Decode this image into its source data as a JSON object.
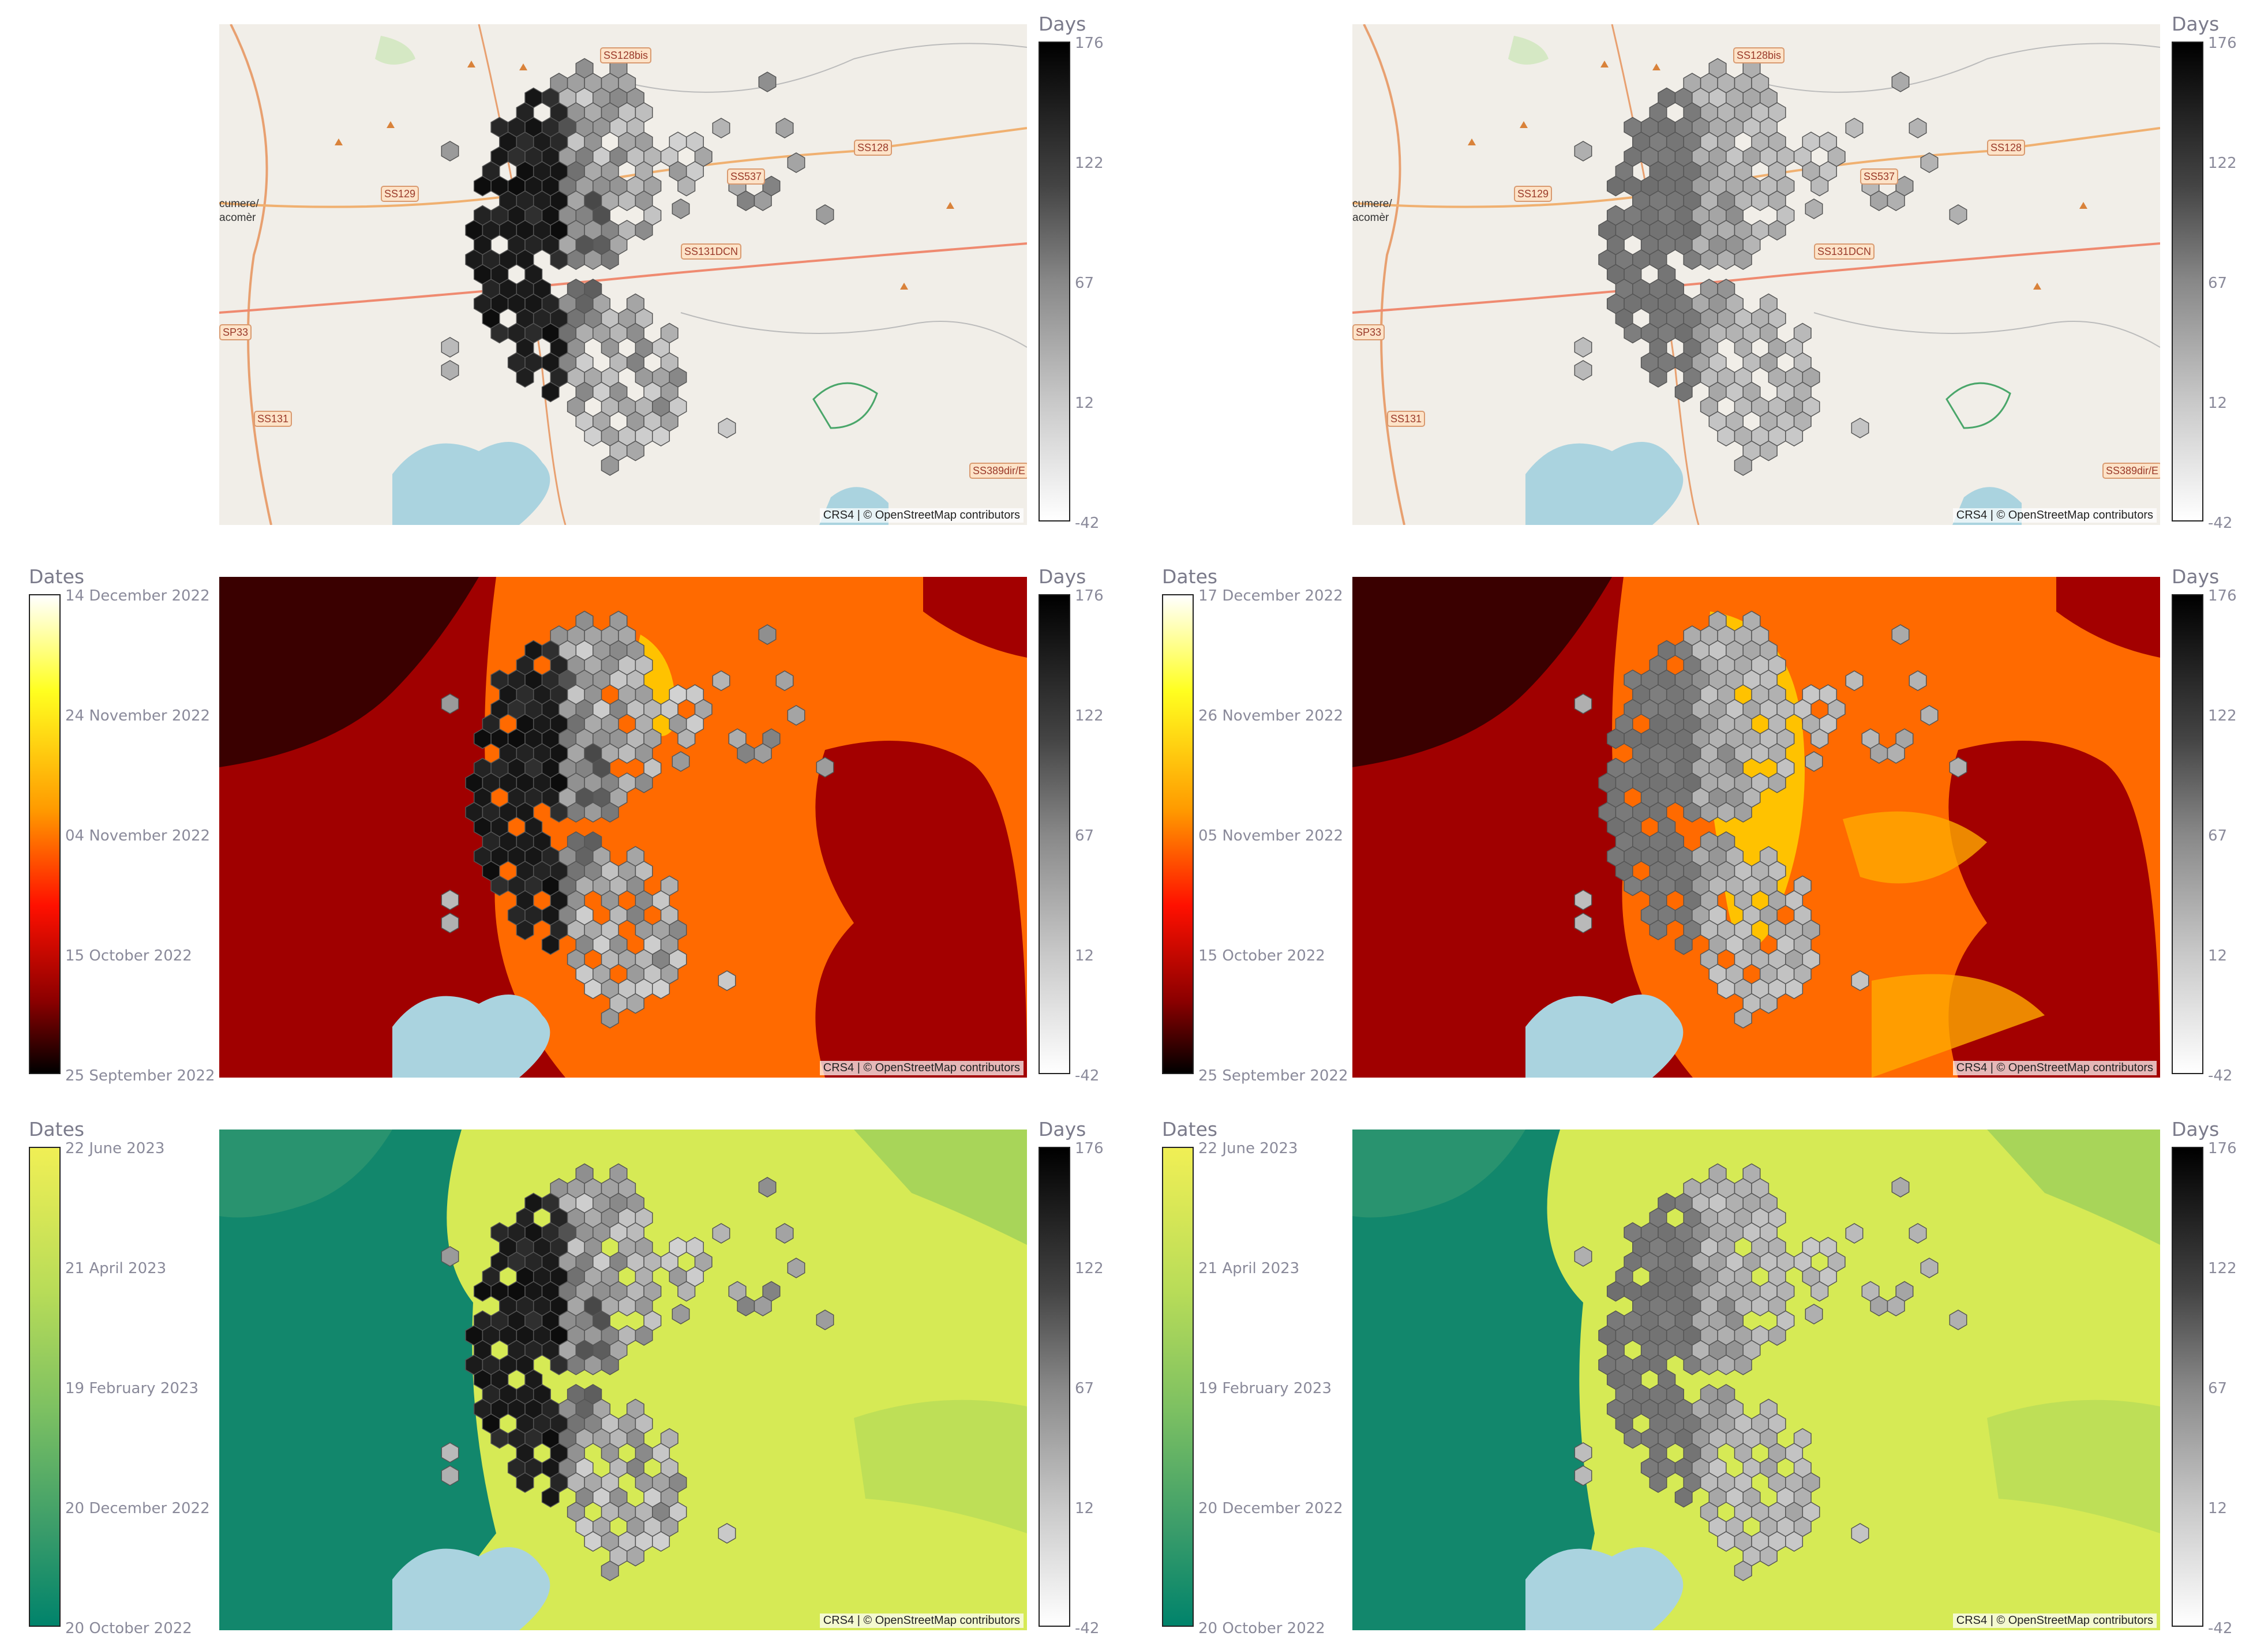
{
  "attribution": "CRS4 | © OpenStreetMap contributors",
  "days_legend": {
    "title": "Days",
    "ticks": [
      "176",
      "122",
      "67",
      "12",
      "-42"
    ]
  },
  "road_labels": [
    "SS128bis",
    "SS128",
    "SS537",
    "SS129",
    "SS131DCN",
    "SP33",
    "SS131",
    "SS389dir/E"
  ],
  "place_label": "cumere/\nacomèr",
  "rows": [
    {
      "left": {
        "type": "osm"
      },
      "right": {
        "type": "osm"
      }
    },
    {
      "left": {
        "type": "heat",
        "dates_legend": {
          "title": "Dates",
          "ticks": [
            "14 December 2022",
            "24 November 2022",
            "04 November 2022",
            "15 October 2022",
            "25 September 2022"
          ]
        }
      },
      "right": {
        "type": "heat",
        "dates_legend": {
          "title": "Dates",
          "ticks": [
            "17 December 2022",
            "26 November 2022",
            "05 November 2022",
            "15 October 2022",
            "25 September 2022"
          ]
        }
      }
    },
    {
      "left": {
        "type": "green",
        "dates_legend": {
          "title": "Dates",
          "ticks": [
            "22 June 2023",
            "21 April 2023",
            "19 February 2023",
            "20 December 2022",
            "20 October 2022"
          ]
        }
      },
      "right": {
        "type": "green",
        "dates_legend": {
          "title": "Dates",
          "ticks": [
            "22 June 2023",
            "21 April 2023",
            "19 February 2023",
            "20 December 2022",
            "20 October 2022"
          ]
        }
      }
    }
  ],
  "colors": {
    "map_bg": "#f1eee8",
    "heat": [
      "#000000",
      "#8b0000",
      "#ff0000",
      "#ff8c00",
      "#ffff00",
      "#ffffff"
    ],
    "green": [
      "#00836b",
      "#4aa66a",
      "#9ccf5a",
      "#d9ee55",
      "#ffff50"
    ],
    "days": [
      "#ffffff",
      "#bdbdbd",
      "#808080",
      "#3a3a3a",
      "#000000"
    ],
    "water": "#aad3df"
  }
}
